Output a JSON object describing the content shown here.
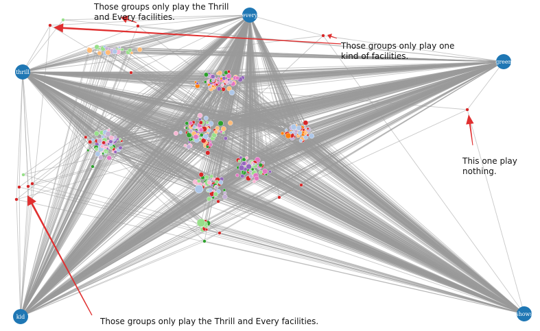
{
  "anchors": [
    {
      "id": "every",
      "label": "every"
    },
    {
      "id": "thrill",
      "label": "thrill"
    },
    {
      "id": "green",
      "label": "green"
    },
    {
      "id": "kid",
      "label": "kid"
    },
    {
      "id": "shows",
      "label": "shows"
    }
  ],
  "annotations": [
    {
      "id": "top",
      "text": "Those groups only play the Thrill\nand Every facilities."
    },
    {
      "id": "one-kind",
      "text": "Those groups only play one\nkind of facilities."
    },
    {
      "id": "nothing",
      "text": "This one play\nnothing."
    },
    {
      "id": "bottom",
      "text": "Those groups only play the Thrill and Every facilities."
    }
  ],
  "colors": {
    "anchor": "#1f77b4",
    "edge": "#9a9a9a",
    "arrow": "#e03030",
    "node_palette": [
      "#d62728",
      "#2ca02c",
      "#98df8a",
      "#ff7f0e",
      "#ffbb78",
      "#aec7e8",
      "#9467bd",
      "#c5b0d5",
      "#e377c2",
      "#f7b6d2",
      "#8c564b"
    ]
  }
}
